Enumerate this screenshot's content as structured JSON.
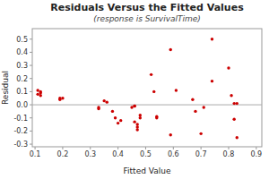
{
  "chart_data": {
    "type": "scatter",
    "title": "Residuals Versus the Fitted Values",
    "subtitle": "(response is SurvivalTime)",
    "xlabel": "Fitted Value",
    "ylabel": "Residual",
    "color": "#cc0000",
    "grid": false,
    "xlim": [
      0.09,
      0.92
    ],
    "ylim": [
      -0.32,
      0.58
    ],
    "xticks": [
      0.1,
      0.2,
      0.3,
      0.4,
      0.5,
      0.6,
      0.7,
      0.8,
      0.9
    ],
    "yticks": [
      -0.3,
      -0.2,
      -0.1,
      {
        "value": 0,
        "label": "0.0"
      },
      0.1,
      0.2,
      0.3,
      0.4,
      0.5
    ],
    "reference_line": {
      "y": 0,
      "color": "#aaaaaa"
    },
    "x": [
      0.11,
      0.12,
      0.12,
      0.11,
      0.12,
      0.19,
      0.19,
      0.2,
      0.33,
      0.33,
      0.35,
      0.36,
      0.38,
      0.39,
      0.4,
      0.41,
      0.45,
      0.46,
      0.46,
      0.46,
      0.47,
      0.47,
      0.47,
      0.48,
      0.48,
      0.52,
      0.53,
      0.54,
      0.54,
      0.59,
      0.59,
      0.61,
      0.67,
      0.68,
      0.7,
      0.71,
      0.74,
      0.74,
      0.8,
      0.81,
      0.82,
      0.82,
      0.83,
      0.83
    ],
    "values": [
      0.11,
      0.1,
      0.07,
      0.08,
      0.09,
      0.05,
      0.04,
      0.05,
      -0.02,
      -0.03,
      0.03,
      0.02,
      -0.05,
      -0.1,
      -0.14,
      -0.12,
      -0.02,
      -0.01,
      -0.01,
      -0.13,
      -0.15,
      -0.17,
      -0.19,
      -0.1,
      -0.08,
      0.23,
      0.1,
      -0.09,
      -0.1,
      0.42,
      -0.23,
      0.11,
      0.04,
      -0.05,
      -0.22,
      -0.02,
      0.5,
      0.18,
      0.28,
      0.07,
      0.01,
      -0.11,
      0.01,
      -0.25
    ]
  }
}
